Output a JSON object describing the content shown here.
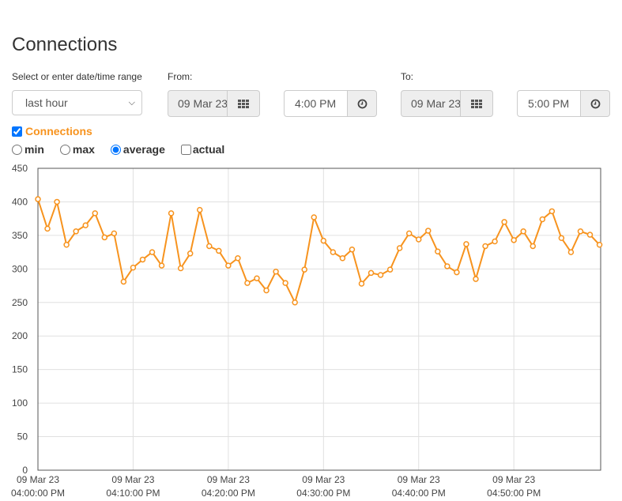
{
  "page": {
    "title": "Connections"
  },
  "range": {
    "label": "Select or enter date/time range",
    "selected": "last hour"
  },
  "from": {
    "label": "From:",
    "date": "09 Mar 23",
    "time": "4:00 PM"
  },
  "to": {
    "label": "To:",
    "date": "09 Mar 23",
    "time": "5:00 PM"
  },
  "series_toggle": {
    "label": "Connections",
    "checked": true
  },
  "modes": [
    {
      "label": "min",
      "checked": false
    },
    {
      "label": "max",
      "checked": false
    },
    {
      "label": "average",
      "checked": true
    }
  ],
  "actual": {
    "label": "actual",
    "checked": false
  },
  "icons": {
    "calendar": "calendar-grid-icon",
    "clock": "clock-icon"
  },
  "colors": {
    "series": "#f7931e",
    "accent": "#f7931e"
  },
  "chart_data": {
    "type": "line",
    "ylim": [
      0,
      450
    ],
    "yticks": [
      0,
      50,
      100,
      150,
      200,
      250,
      300,
      350,
      400,
      450
    ],
    "x_tick_labels": [
      [
        "09 Mar 23",
        "04:00:00 PM"
      ],
      [
        "09 Mar 23",
        "04:10:00 PM"
      ],
      [
        "09 Mar 23",
        "04:20:00 PM"
      ],
      [
        "09 Mar 23",
        "04:30:00 PM"
      ],
      [
        "09 Mar 23",
        "04:40:00 PM"
      ],
      [
        "09 Mar 23",
        "04:50:00 PM"
      ]
    ],
    "x_range_minutes": [
      0,
      59
    ],
    "grid": true,
    "series": [
      {
        "values": [
          404,
          360,
          400,
          336,
          356,
          365,
          383,
          347,
          353,
          281,
          302,
          314,
          325,
          305,
          383,
          301,
          323,
          388,
          334,
          327,
          305,
          316,
          279,
          286,
          268,
          296,
          279,
          250,
          299,
          377,
          342,
          325,
          316,
          329,
          278,
          294,
          291,
          299,
          331,
          353,
          344,
          357,
          326,
          304,
          295,
          337,
          285,
          334,
          341,
          370,
          343,
          356,
          334,
          374,
          386,
          346,
          325,
          356,
          351,
          336
        ]
      }
    ]
  }
}
